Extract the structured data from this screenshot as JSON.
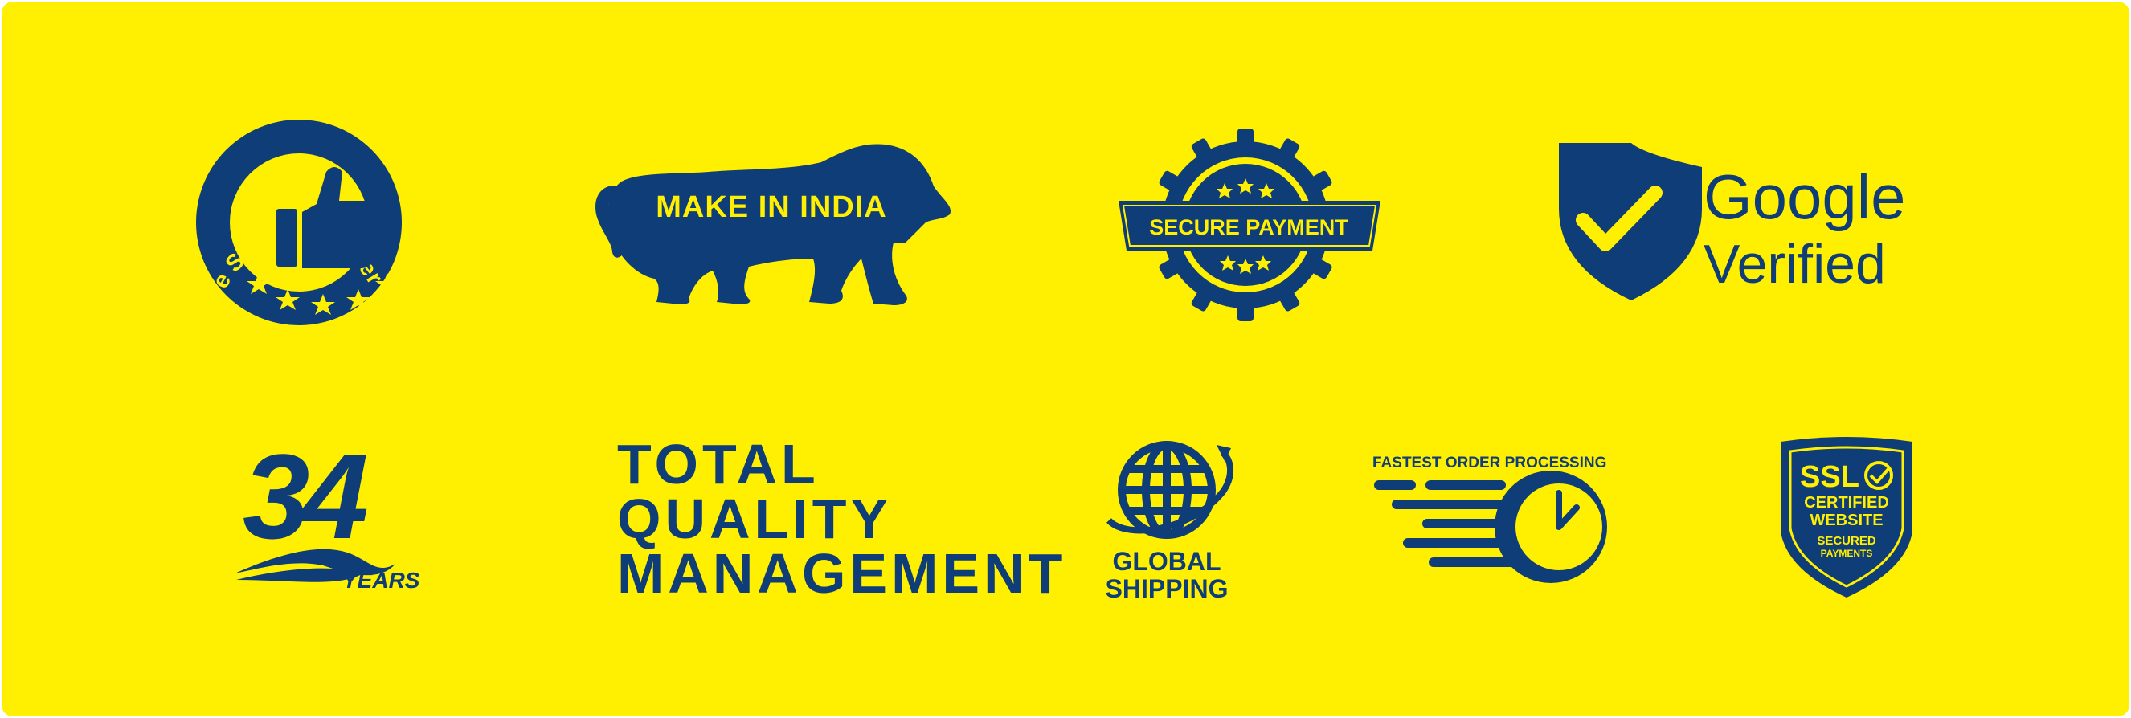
{
  "colors": {
    "background": "#ffef00",
    "ink": "#0e3d78",
    "frame": "#ffffff"
  },
  "badges": {
    "five_star": {
      "ring_text": "Five Star Customer Review",
      "icon": "thumbs-up-icon",
      "stars": 5
    },
    "make_in_india": {
      "text": "MAKE IN INDIA",
      "icon": "lion-icon"
    },
    "secure_payment": {
      "text": "SECURE PAYMENT",
      "icon": "gear-seal-icon"
    },
    "google": {
      "line1": "Google",
      "line2": "Verified",
      "icon": "shield-check-icon"
    },
    "years": {
      "number": "34",
      "label": "YEARS"
    },
    "tqm": {
      "line1": "TOTAL",
      "line2": "QUALITY",
      "line3": "MANAGEMENT"
    },
    "global": {
      "line1": "GLOBAL",
      "line2": "SHIPPING",
      "icon": "globe-icon"
    },
    "fast_order": {
      "text": "FASTEST ORDER PROCESSING",
      "icon": "clock-icon"
    },
    "ssl": {
      "line1": "SSL",
      "line2": "CERTIFIED",
      "line3": "WEBSITE",
      "line4": "SECURED",
      "line5": "PAYMENTS",
      "icon": "shield-icon"
    }
  }
}
